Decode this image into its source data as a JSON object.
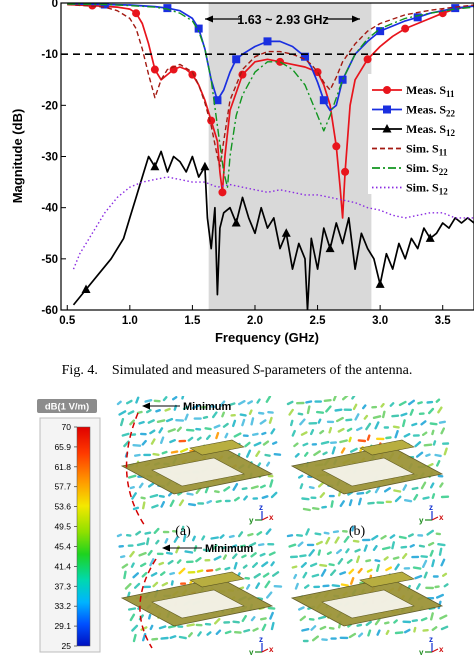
{
  "figure4": {
    "caption_label": "Fig. 4.",
    "caption_pre": "Simulated and measured ",
    "caption_italic": "S",
    "caption_post": "-parameters of the antenna."
  },
  "chart_data": {
    "type": "line",
    "xlabel": "Frequency (GHz)",
    "ylabel": "Magnitude (dB)",
    "xlim": [
      0.45,
      3.75
    ],
    "ylim": [
      -60,
      0
    ],
    "xticks": [
      "0.5",
      "1.0",
      "1.5",
      "2.0",
      "2.5",
      "3.0",
      "3.5"
    ],
    "yticks": [
      "0",
      "-10",
      "-20",
      "-30",
      "-40",
      "-50",
      "-60"
    ],
    "shaded_band": {
      "from": 1.63,
      "to": 2.93,
      "label": "1.63 ~ 2.93 GHz"
    },
    "reference_line": {
      "y": -10,
      "style": "dashed"
    },
    "legend_position": "right",
    "series": [
      {
        "name": "Meas. S11",
        "color": "#e8141c",
        "dash": "solid",
        "marker": "circle",
        "x": [
          0.5,
          0.7,
          0.9,
          1.0,
          1.05,
          1.1,
          1.15,
          1.2,
          1.25,
          1.3,
          1.35,
          1.4,
          1.45,
          1.5,
          1.55,
          1.6,
          1.65,
          1.7,
          1.72,
          1.74,
          1.76,
          1.8,
          1.9,
          2.0,
          2.1,
          2.2,
          2.3,
          2.4,
          2.5,
          2.55,
          2.6,
          2.65,
          2.68,
          2.7,
          2.72,
          2.76,
          2.8,
          2.9,
          3.0,
          3.1,
          3.2,
          3.3,
          3.4,
          3.5,
          3.6,
          3.75
        ],
        "y": [
          -0.3,
          -0.5,
          -0.8,
          -1.2,
          -2.0,
          -4.0,
          -8.0,
          -13.0,
          -15.0,
          -14.0,
          -13.0,
          -12.5,
          -13.0,
          -14.0,
          -16.0,
          -19.0,
          -23.0,
          -27.0,
          -33.0,
          -37.0,
          -30.0,
          -21.0,
          -14.0,
          -11.5,
          -11.0,
          -11.5,
          -12.0,
          -12.5,
          -13.5,
          -16.0,
          -20.0,
          -28.0,
          -36.0,
          -42.0,
          -33.0,
          -20.0,
          -15.0,
          -11.0,
          -8.5,
          -6.5,
          -5.0,
          -4.0,
          -3.0,
          -2.0,
          -1.2,
          -0.5
        ]
      },
      {
        "name": "Meas. S22",
        "color": "#1a2fe0",
        "dash": "solid",
        "marker": "square",
        "x": [
          0.5,
          0.8,
          1.0,
          1.2,
          1.3,
          1.4,
          1.5,
          1.55,
          1.6,
          1.65,
          1.7,
          1.75,
          1.8,
          1.85,
          1.9,
          2.0,
          2.1,
          2.2,
          2.3,
          2.4,
          2.45,
          2.5,
          2.55,
          2.6,
          2.65,
          2.7,
          2.8,
          2.9,
          3.0,
          3.1,
          3.2,
          3.3,
          3.4,
          3.5,
          3.6,
          3.75
        ],
        "y": [
          -0.2,
          -0.3,
          -0.4,
          -0.7,
          -1.0,
          -1.5,
          -3.0,
          -5.0,
          -9.0,
          -15.0,
          -19.0,
          -17.0,
          -13.5,
          -11.0,
          -10.0,
          -8.5,
          -7.5,
          -7.5,
          -8.5,
          -10.5,
          -12.5,
          -15.5,
          -19.0,
          -21.0,
          -20.0,
          -15.0,
          -10.0,
          -7.5,
          -5.5,
          -4.5,
          -3.5,
          -2.8,
          -2.0,
          -1.5,
          -1.0,
          -0.6
        ]
      },
      {
        "name": "Meas. S12",
        "color": "#000000",
        "dash": "solid",
        "marker": "triangle",
        "x": [
          0.55,
          0.65,
          0.75,
          0.85,
          0.95,
          1.0,
          1.05,
          1.1,
          1.15,
          1.2,
          1.25,
          1.3,
          1.35,
          1.4,
          1.45,
          1.5,
          1.55,
          1.6,
          1.62,
          1.65,
          1.68,
          1.7,
          1.72,
          1.75,
          1.8,
          1.85,
          1.9,
          1.95,
          2.0,
          2.05,
          2.1,
          2.15,
          2.2,
          2.25,
          2.3,
          2.35,
          2.4,
          2.42,
          2.45,
          2.5,
          2.55,
          2.6,
          2.65,
          2.7,
          2.75,
          2.8,
          2.85,
          2.9,
          2.95,
          3.0,
          3.05,
          3.1,
          3.15,
          3.2,
          3.25,
          3.3,
          3.35,
          3.4,
          3.45,
          3.5,
          3.55,
          3.6,
          3.65,
          3.7,
          3.75
        ],
        "y": [
          -59.0,
          -56.0,
          -53.0,
          -50.0,
          -46.0,
          -42.0,
          -38.0,
          -34.0,
          -30.0,
          -32.0,
          -29.0,
          -33.0,
          -30.0,
          -31.0,
          -33.0,
          -30.0,
          -34.0,
          -32.0,
          -42.0,
          -48.0,
          -40.0,
          -57.0,
          -44.0,
          -41.0,
          -40.0,
          -43.0,
          -38.0,
          -42.0,
          -45.0,
          -40.0,
          -44.0,
          -42.0,
          -48.0,
          -45.0,
          -52.0,
          -47.0,
          -50.0,
          -60.0,
          -46.0,
          -52.0,
          -44.0,
          -48.0,
          -43.0,
          -47.0,
          -42.0,
          -52.0,
          -45.0,
          -48.0,
          -50.0,
          -55.0,
          -49.0,
          -52.0,
          -47.0,
          -50.0,
          -46.0,
          -48.0,
          -44.0,
          -46.0,
          -45.0,
          -43.0,
          -44.0,
          -42.0,
          -43.0,
          -42.0,
          -43.0
        ]
      },
      {
        "name": "Sim. S11",
        "color": "#a31a12",
        "dash": "dash",
        "marker": "none",
        "x": [
          0.5,
          0.8,
          0.9,
          1.0,
          1.05,
          1.1,
          1.15,
          1.2,
          1.25,
          1.3,
          1.4,
          1.5,
          1.55,
          1.6,
          1.65,
          1.7,
          1.72,
          1.75,
          1.8,
          1.9,
          2.0,
          2.1,
          2.2,
          2.3,
          2.4,
          2.45,
          2.5,
          2.55,
          2.6,
          2.65,
          2.7,
          2.8,
          2.9,
          3.0,
          3.2,
          3.4,
          3.6,
          3.75
        ],
        "y": [
          -0.3,
          -0.8,
          -1.5,
          -3.0,
          -5.0,
          -9.0,
          -14.0,
          -18.5,
          -15.0,
          -13.0,
          -12.0,
          -13.5,
          -16.0,
          -19.5,
          -24.0,
          -30.0,
          -32.0,
          -27.0,
          -19.0,
          -13.0,
          -10.5,
          -9.5,
          -9.5,
          -10.0,
          -11.0,
          -12.0,
          -13.5,
          -15.5,
          -17.0,
          -14.5,
          -11.5,
          -8.0,
          -5.5,
          -4.0,
          -2.3,
          -1.4,
          -0.8,
          -0.4
        ]
      },
      {
        "name": "Sim. S22",
        "color": "#10951f",
        "dash": "dashdot",
        "marker": "none",
        "x": [
          0.5,
          0.8,
          1.0,
          1.2,
          1.3,
          1.4,
          1.5,
          1.55,
          1.6,
          1.65,
          1.7,
          1.75,
          1.78,
          1.8,
          1.85,
          1.9,
          2.0,
          2.1,
          2.2,
          2.3,
          2.4,
          2.5,
          2.55,
          2.6,
          2.7,
          2.8,
          2.9,
          3.0,
          3.2,
          3.4,
          3.6,
          3.75
        ],
        "y": [
          -0.2,
          -0.3,
          -0.5,
          -0.8,
          -1.2,
          -2.0,
          -3.5,
          -5.5,
          -9.0,
          -15.0,
          -24.0,
          -33.0,
          -36.0,
          -30.0,
          -22.0,
          -18.0,
          -13.5,
          -11.5,
          -11.5,
          -13.0,
          -16.0,
          -22.0,
          -25.0,
          -22.0,
          -15.0,
          -10.0,
          -7.0,
          -5.0,
          -3.0,
          -2.0,
          -1.2,
          -0.8
        ]
      },
      {
        "name": "Sim. S12",
        "color": "#8a2be2",
        "dash": "dot",
        "marker": "none",
        "x": [
          0.55,
          0.6,
          0.7,
          0.8,
          0.9,
          1.0,
          1.1,
          1.2,
          1.3,
          1.4,
          1.5,
          1.6,
          1.7,
          1.8,
          1.9,
          2.0,
          2.1,
          2.2,
          2.3,
          2.4,
          2.5,
          2.6,
          2.7,
          2.8,
          2.9,
          3.0,
          3.1,
          3.2,
          3.3,
          3.4,
          3.5,
          3.6,
          3.75
        ],
        "y": [
          -52.0,
          -49.0,
          -45.0,
          -41.0,
          -38.0,
          -36.0,
          -35.0,
          -34.5,
          -34.0,
          -34.5,
          -35.0,
          -35.0,
          -36.0,
          -35.5,
          -36.0,
          -36.5,
          -37.0,
          -36.5,
          -37.0,
          -37.5,
          -37.5,
          -38.0,
          -38.5,
          -39.0,
          -40.0,
          -40.5,
          -41.5,
          -42.0,
          -41.5,
          -41.0,
          -41.0,
          -42.0,
          -42.0
        ]
      }
    ]
  },
  "field_figure": {
    "colorbar_title": "dB(1 V/m)",
    "colorbar_ticks": [
      "70",
      "65.9",
      "61.8",
      "57.7",
      "53.6",
      "49.5",
      "45.4",
      "41.4",
      "37.3",
      "33.2",
      "29.1",
      "25"
    ],
    "minimum_label": "Minimum",
    "panel_labels": [
      "(a)",
      "(b)"
    ],
    "axis_labels": {
      "y": "y",
      "z": "z",
      "x": "x"
    }
  }
}
